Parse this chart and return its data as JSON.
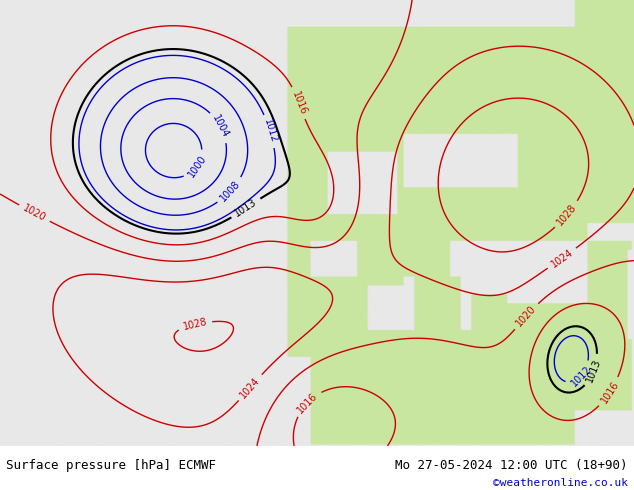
{
  "title_left": "Surface pressure [hPa] ECMWF",
  "title_right": "Mo 27-05-2024 12:00 UTC (18+90)",
  "copyright": "©weatheronline.co.uk",
  "bg_ocean": "#e8e8e8",
  "bg_land": "#c8e6a0",
  "bg_land2": "#b8d890",
  "contour_low_color": "#0000cc",
  "contour_high_color": "#cc0000",
  "contour_mid_color": "#000000",
  "label_fontsize": 7,
  "footer_fontsize": 9,
  "copyright_fontsize": 8,
  "copyright_color": "#0000cc",
  "figsize": [
    6.34,
    4.9
  ],
  "dpi": 100
}
